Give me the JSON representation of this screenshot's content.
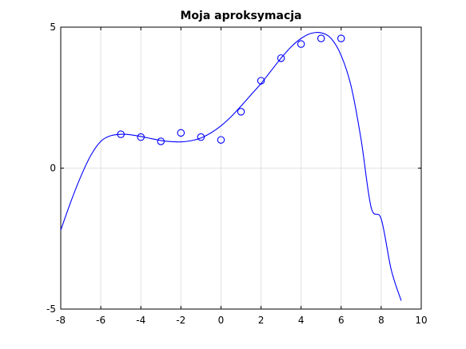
{
  "chart_data": {
    "type": "scatter",
    "title": "Moja aproksymacja",
    "xlabel": "",
    "ylabel": "",
    "xlim": [
      -8,
      10
    ],
    "ylim": [
      -5,
      5
    ],
    "x_ticks": [
      "-8",
      "-6",
      "-4",
      "-2",
      "0",
      "2",
      "4",
      "6",
      "8",
      "10"
    ],
    "y_ticks": [
      "-5",
      "0",
      "5"
    ],
    "grid": true,
    "colors": {
      "series": "#0000ff",
      "grid": "#e1e1e1",
      "axes": "#000000"
    },
    "points": {
      "x": [
        -5,
        -4,
        -3,
        -2,
        -1,
        0,
        1,
        2,
        3,
        4,
        5,
        6
      ],
      "y": [
        1.2,
        1.1,
        0.95,
        1.25,
        1.1,
        1.0,
        2.0,
        3.1,
        3.9,
        4.4,
        4.6,
        4.6
      ]
    },
    "curve": {
      "x": [
        -8,
        -7.5,
        -7,
        -6.5,
        -6,
        -5.5,
        -5,
        -4.5,
        -4,
        -3.5,
        -3,
        -2.5,
        -2,
        -1.5,
        -1,
        -0.5,
        0,
        0.5,
        1,
        1.5,
        2,
        2.5,
        3,
        3.5,
        4,
        4.5,
        5,
        5.5,
        6,
        6.5,
        7,
        7.5,
        8,
        8.5,
        9
      ],
      "y": [
        -2.2,
        -1.2,
        -0.3,
        0.45,
        0.95,
        1.15,
        1.2,
        1.18,
        1.12,
        1.05,
        0.98,
        0.94,
        0.93,
        0.97,
        1.07,
        1.25,
        1.5,
        1.82,
        2.2,
        2.6,
        3.0,
        3.45,
        3.9,
        4.3,
        4.6,
        4.78,
        4.8,
        4.6,
        4.0,
        2.9,
        1.0,
        -1.4,
        -1.8,
        -3.6,
        -4.7
      ]
    }
  }
}
